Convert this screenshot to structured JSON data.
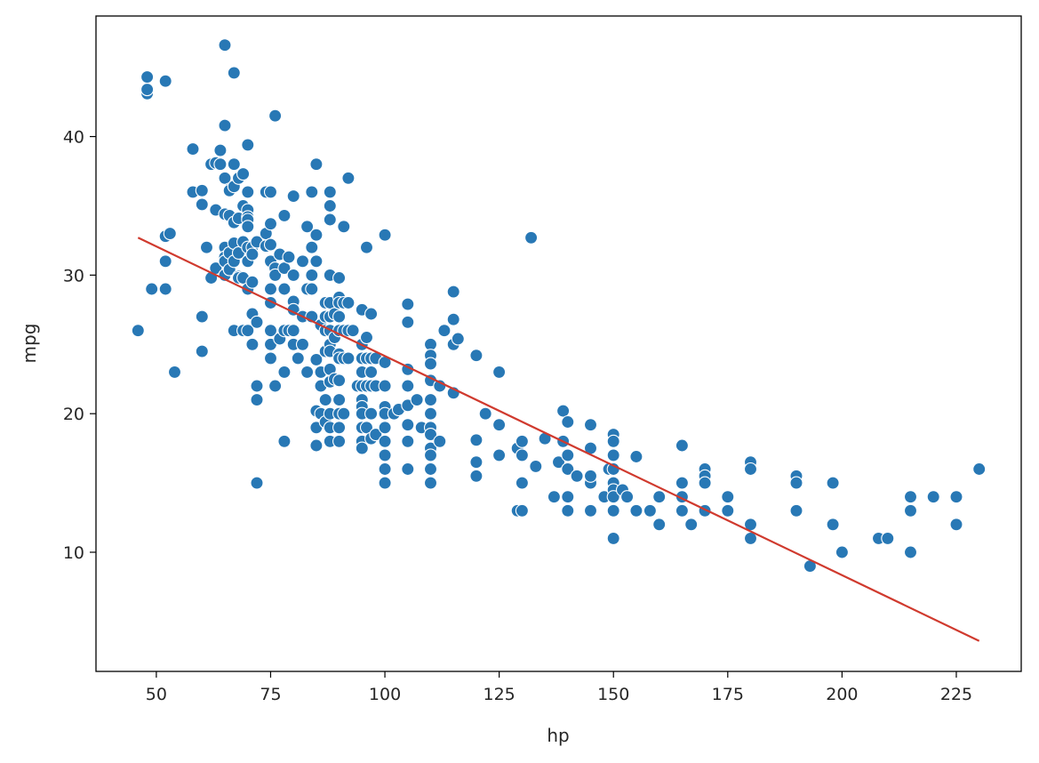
{
  "chart_data": {
    "type": "scatter",
    "xlabel": "hp",
    "ylabel": "mpg",
    "xlim": [
      36.8,
      239.2
    ],
    "ylim": [
      1.4,
      48.7
    ],
    "xticks": [
      50,
      75,
      100,
      125,
      150,
      175,
      200,
      225
    ],
    "yticks": [
      10,
      20,
      30,
      40
    ],
    "colors": {
      "points": "#2878b5",
      "point_edge": "#ffffff",
      "fit_line": "#d03a2e"
    },
    "fit_line": {
      "x": [
        46,
        230
      ],
      "y": [
        32.7,
        3.6
      ]
    },
    "points": [
      [
        46,
        26
      ],
      [
        48,
        43.1
      ],
      [
        48,
        43.4
      ],
      [
        48,
        44.3
      ],
      [
        49,
        29
      ],
      [
        52,
        44
      ],
      [
        52,
        32.8
      ],
      [
        52,
        31
      ],
      [
        52,
        29
      ],
      [
        53,
        33
      ],
      [
        54,
        23
      ],
      [
        58,
        39.1
      ],
      [
        58,
        36
      ],
      [
        60,
        36.1
      ],
      [
        60,
        35.1
      ],
      [
        60,
        27
      ],
      [
        60,
        24.5
      ],
      [
        61,
        32
      ],
      [
        62,
        38
      ],
      [
        62,
        29.8
      ],
      [
        63,
        38.1
      ],
      [
        63,
        34.7
      ],
      [
        63,
        30.5
      ],
      [
        64,
        39
      ],
      [
        64,
        38
      ],
      [
        65,
        46.6
      ],
      [
        65,
        40.8
      ],
      [
        65,
        37
      ],
      [
        65,
        34.4
      ],
      [
        65,
        32
      ],
      [
        65,
        31.3
      ],
      [
        65,
        31
      ],
      [
        65,
        30
      ],
      [
        66,
        36.2
      ],
      [
        66,
        36.1
      ],
      [
        66,
        34.3
      ],
      [
        66,
        31.6
      ],
      [
        66,
        30.4
      ],
      [
        67,
        44.6
      ],
      [
        67,
        38
      ],
      [
        67,
        36.4
      ],
      [
        67,
        33.8
      ],
      [
        67,
        32.3
      ],
      [
        67,
        31
      ],
      [
        67,
        26
      ],
      [
        68,
        37
      ],
      [
        68,
        34.1
      ],
      [
        68,
        31.6
      ],
      [
        68,
        29.9
      ],
      [
        68,
        29.8
      ],
      [
        69,
        37.3
      ],
      [
        69,
        35
      ],
      [
        69,
        32.4
      ],
      [
        69,
        29.8
      ],
      [
        69,
        26
      ],
      [
        70,
        39.4
      ],
      [
        70,
        36
      ],
      [
        70,
        34.7
      ],
      [
        70,
        34.2
      ],
      [
        70,
        34
      ],
      [
        70,
        33.5
      ],
      [
        70,
        32
      ],
      [
        70,
        31
      ],
      [
        70,
        29
      ],
      [
        70,
        26
      ],
      [
        71,
        32
      ],
      [
        71,
        31.5
      ],
      [
        71,
        29.5
      ],
      [
        71,
        27.2
      ],
      [
        71,
        25
      ],
      [
        72,
        32.4
      ],
      [
        72,
        26.6
      ],
      [
        72,
        22
      ],
      [
        72,
        21
      ],
      [
        72,
        15
      ],
      [
        74,
        36
      ],
      [
        74,
        33
      ],
      [
        74,
        32.1
      ],
      [
        75,
        36
      ],
      [
        75,
        33.7
      ],
      [
        75,
        32.2
      ],
      [
        75,
        31
      ],
      [
        75,
        29
      ],
      [
        75,
        28
      ],
      [
        75,
        26
      ],
      [
        75,
        25
      ],
      [
        75,
        24
      ],
      [
        76,
        41.5
      ],
      [
        76,
        30.5
      ],
      [
        76,
        30
      ],
      [
        76,
        22
      ],
      [
        77,
        31.5
      ],
      [
        77,
        25.4
      ],
      [
        78,
        34.3
      ],
      [
        78,
        30.5
      ],
      [
        78,
        29
      ],
      [
        78,
        26
      ],
      [
        78,
        23
      ],
      [
        78,
        18
      ],
      [
        79,
        31.3
      ],
      [
        79,
        26
      ],
      [
        80,
        35.7
      ],
      [
        80,
        30
      ],
      [
        80,
        28.1
      ],
      [
        80,
        27.5
      ],
      [
        80,
        26
      ],
      [
        80,
        25
      ],
      [
        81,
        24
      ],
      [
        82,
        31
      ],
      [
        82,
        25
      ],
      [
        82,
        27
      ],
      [
        83,
        33.5
      ],
      [
        83,
        29
      ],
      [
        83,
        23
      ],
      [
        84,
        36
      ],
      [
        84,
        32
      ],
      [
        84,
        30
      ],
      [
        84,
        29
      ],
      [
        84,
        27
      ],
      [
        85,
        38
      ],
      [
        85,
        32.9
      ],
      [
        85,
        31
      ],
      [
        85,
        23.9
      ],
      [
        85,
        20.2
      ],
      [
        85,
        19
      ],
      [
        85,
        17.7
      ],
      [
        86,
        26.4
      ],
      [
        86,
        23
      ],
      [
        86,
        22
      ],
      [
        86,
        20
      ],
      [
        87,
        28
      ],
      [
        87,
        27
      ],
      [
        87,
        26
      ],
      [
        87,
        24.5
      ],
      [
        87,
        21
      ],
      [
        87,
        19.4
      ],
      [
        88,
        36
      ],
      [
        88,
        35
      ],
      [
        88,
        34
      ],
      [
        88,
        30
      ],
      [
        88,
        28
      ],
      [
        88,
        27
      ],
      [
        88,
        26
      ],
      [
        88,
        25
      ],
      [
        88,
        24.5
      ],
      [
        88,
        23.2
      ],
      [
        88,
        22.3
      ],
      [
        88,
        20
      ],
      [
        88,
        19
      ],
      [
        88,
        18
      ],
      [
        89,
        27.2
      ],
      [
        89,
        25.5
      ],
      [
        89,
        22.5
      ],
      [
        90,
        29.8
      ],
      [
        90,
        28.4
      ],
      [
        90,
        28
      ],
      [
        90,
        27
      ],
      [
        90,
        26
      ],
      [
        90,
        24.3
      ],
      [
        90,
        24
      ],
      [
        90,
        22.4
      ],
      [
        90,
        21
      ],
      [
        90,
        20
      ],
      [
        90,
        19
      ],
      [
        90,
        18
      ],
      [
        91,
        33.5
      ],
      [
        91,
        28
      ],
      [
        91,
        26
      ],
      [
        91,
        24
      ],
      [
        91,
        20
      ],
      [
        92,
        37
      ],
      [
        92,
        28
      ],
      [
        92,
        26
      ],
      [
        92,
        24
      ],
      [
        93,
        26
      ],
      [
        94,
        22
      ],
      [
        95,
        27.5
      ],
      [
        95,
        25
      ],
      [
        95,
        24
      ],
      [
        95,
        23
      ],
      [
        95,
        22
      ],
      [
        95,
        21
      ],
      [
        95,
        20.5
      ],
      [
        95,
        20
      ],
      [
        95,
        19
      ],
      [
        95,
        18
      ],
      [
        95,
        17.5
      ],
      [
        96,
        32
      ],
      [
        96,
        25.5
      ],
      [
        96,
        24
      ],
      [
        96,
        22
      ],
      [
        96,
        19
      ],
      [
        97,
        27.2
      ],
      [
        97,
        24
      ],
      [
        97,
        23
      ],
      [
        97,
        22
      ],
      [
        97,
        20
      ],
      [
        97,
        18.2
      ],
      [
        98,
        24
      ],
      [
        98,
        22
      ],
      [
        98,
        18.5
      ],
      [
        100,
        32.9
      ],
      [
        100,
        23.7
      ],
      [
        100,
        22
      ],
      [
        100,
        20.5
      ],
      [
        100,
        20
      ],
      [
        100,
        19
      ],
      [
        100,
        18
      ],
      [
        100,
        17
      ],
      [
        100,
        16
      ],
      [
        100,
        15
      ],
      [
        102,
        20
      ],
      [
        103,
        20.3
      ],
      [
        105,
        27.9
      ],
      [
        105,
        26.6
      ],
      [
        105,
        23.2
      ],
      [
        105,
        22
      ],
      [
        105,
        20.6
      ],
      [
        105,
        19.2
      ],
      [
        105,
        18
      ],
      [
        105,
        16
      ],
      [
        107,
        21
      ],
      [
        108,
        19
      ],
      [
        110,
        25
      ],
      [
        110,
        24.2
      ],
      [
        110,
        23.6
      ],
      [
        110,
        22.4
      ],
      [
        110,
        21
      ],
      [
        110,
        20
      ],
      [
        110,
        19
      ],
      [
        110,
        18.5
      ],
      [
        110,
        17.5
      ],
      [
        110,
        17
      ],
      [
        110,
        16
      ],
      [
        110,
        15
      ],
      [
        112,
        22
      ],
      [
        112,
        18
      ],
      [
        113,
        26
      ],
      [
        115,
        28.8
      ],
      [
        115,
        26.8
      ],
      [
        115,
        25
      ],
      [
        115,
        21.5
      ],
      [
        116,
        25.4
      ],
      [
        120,
        24.2
      ],
      [
        120,
        18.1
      ],
      [
        120,
        16.5
      ],
      [
        120,
        15.5
      ],
      [
        122,
        20
      ],
      [
        125,
        23
      ],
      [
        125,
        19.2
      ],
      [
        125,
        17
      ],
      [
        129,
        17.5
      ],
      [
        129,
        13
      ],
      [
        130,
        18
      ],
      [
        130,
        17
      ],
      [
        130,
        15
      ],
      [
        130,
        13
      ],
      [
        132,
        32.7
      ],
      [
        133,
        16.2
      ],
      [
        135,
        18.2
      ],
      [
        137,
        14
      ],
      [
        138,
        16.5
      ],
      [
        139,
        20.2
      ],
      [
        139,
        18
      ],
      [
        140,
        19.4
      ],
      [
        140,
        17
      ],
      [
        140,
        16
      ],
      [
        140,
        14
      ],
      [
        140,
        13
      ],
      [
        142,
        15.5
      ],
      [
        145,
        19.2
      ],
      [
        145,
        17.5
      ],
      [
        145,
        15
      ],
      [
        145,
        15.5
      ],
      [
        145,
        13
      ],
      [
        148,
        14
      ],
      [
        149,
        16
      ],
      [
        150,
        18.5
      ],
      [
        150,
        18
      ],
      [
        150,
        17
      ],
      [
        150,
        16
      ],
      [
        150,
        15
      ],
      [
        150,
        14.5
      ],
      [
        150,
        14
      ],
      [
        150,
        13
      ],
      [
        150,
        11
      ],
      [
        152,
        14.5
      ],
      [
        153,
        14
      ],
      [
        155,
        16.9
      ],
      [
        155,
        13
      ],
      [
        158,
        13
      ],
      [
        160,
        14
      ],
      [
        160,
        12
      ],
      [
        165,
        17.7
      ],
      [
        165,
        15
      ],
      [
        165,
        14
      ],
      [
        165,
        13
      ],
      [
        167,
        12
      ],
      [
        170,
        16
      ],
      [
        170,
        15.5
      ],
      [
        170,
        15
      ],
      [
        170,
        13
      ],
      [
        175,
        14
      ],
      [
        175,
        13
      ],
      [
        180,
        16.5
      ],
      [
        180,
        16
      ],
      [
        180,
        12
      ],
      [
        180,
        11
      ],
      [
        190,
        15.5
      ],
      [
        190,
        15
      ],
      [
        190,
        13
      ],
      [
        193,
        9
      ],
      [
        198,
        15
      ],
      [
        198,
        12
      ],
      [
        200,
        10
      ],
      [
        208,
        11
      ],
      [
        210,
        11
      ],
      [
        215,
        14
      ],
      [
        215,
        13
      ],
      [
        215,
        10
      ],
      [
        220,
        14
      ],
      [
        225,
        14
      ],
      [
        225,
        12
      ],
      [
        230,
        16
      ]
    ]
  }
}
